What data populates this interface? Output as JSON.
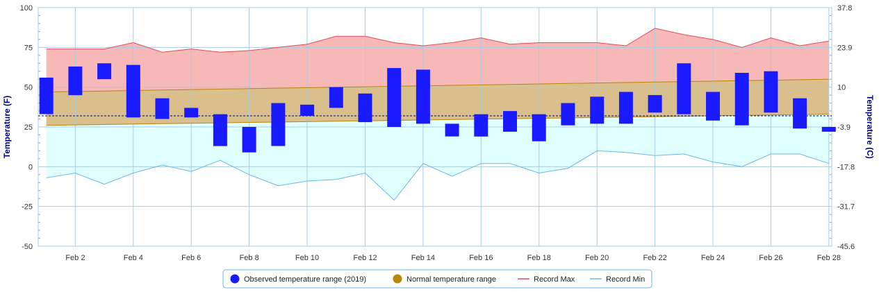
{
  "chart_data": {
    "type": "bar",
    "title": "",
    "y_left_label": "Temperature (F)",
    "y_right_label": "Temperature (C)",
    "ylim": [
      -50,
      100
    ],
    "y_left_ticks": [
      -50,
      -25,
      0,
      25,
      50,
      75,
      100
    ],
    "y_right_ticks": [
      "-45.6",
      "-31.7",
      "-17.8",
      "-3.9",
      "10",
      "23.9",
      "37.8"
    ],
    "x_ticks": [
      {
        "day": 2,
        "label": "Feb 2"
      },
      {
        "day": 4,
        "label": "Feb 4"
      },
      {
        "day": 6,
        "label": "Feb 6"
      },
      {
        "day": 8,
        "label": "Feb 8"
      },
      {
        "day": 10,
        "label": "Feb 10"
      },
      {
        "day": 12,
        "label": "Feb 12"
      },
      {
        "day": 14,
        "label": "Feb 14"
      },
      {
        "day": 16,
        "label": "Feb 16"
      },
      {
        "day": 18,
        "label": "Feb 18"
      },
      {
        "day": 20,
        "label": "Feb 20"
      },
      {
        "day": 22,
        "label": "Feb 22"
      },
      {
        "day": 24,
        "label": "Feb 24"
      },
      {
        "day": 26,
        "label": "Feb 26"
      },
      {
        "day": 28,
        "label": "Feb 28"
      }
    ],
    "freezing_line_f": 32,
    "days": [
      1,
      2,
      3,
      4,
      5,
      6,
      7,
      8,
      9,
      10,
      11,
      12,
      13,
      14,
      15,
      16,
      17,
      18,
      19,
      20,
      21,
      22,
      23,
      24,
      25,
      26,
      27,
      28
    ],
    "observed_low": [
      33,
      45,
      55,
      31,
      30,
      31,
      13,
      9,
      13,
      32,
      37,
      28,
      25,
      27,
      19,
      19,
      22,
      16,
      26,
      27,
      27,
      34,
      33,
      29,
      26,
      34,
      24,
      22
    ],
    "observed_high": [
      56,
      63,
      65,
      64,
      43,
      37,
      33,
      25,
      40,
      39,
      50,
      46,
      62,
      61,
      27,
      33,
      35,
      33,
      40,
      44,
      47,
      45,
      65,
      47,
      59,
      60,
      43,
      25
    ],
    "normal_low_start": 26,
    "normal_low_end": 33,
    "normal_high_start": 47,
    "normal_high_end": 55,
    "record_max": [
      74,
      74,
      74,
      78,
      72,
      74,
      72,
      73,
      75,
      77,
      82,
      82,
      78,
      76,
      78,
      81,
      77,
      78,
      78,
      78,
      76,
      87,
      83,
      80,
      75,
      81,
      76,
      79
    ],
    "record_min": [
      -7,
      -4,
      -11,
      -4,
      1,
      -3,
      4,
      -5,
      -12,
      -9,
      -8,
      -4,
      -21,
      2,
      -6,
      2,
      2,
      -4,
      -1,
      10,
      9,
      7,
      8,
      3,
      0,
      8,
      8,
      2
    ],
    "colors": {
      "observed": "#1a1aff",
      "normal_fill": "#d8bf8c",
      "normal_line": "#b8860b",
      "record_max_line": "#e8495a",
      "record_max_fill": "#f7b8b8",
      "record_min_line": "#6ab7e6",
      "record_min_fill": "#e0ffff",
      "grid": "#a8cce0",
      "freezing": "#000080"
    }
  },
  "legend": {
    "observed": "Observed temperature range (2019)",
    "normal": "Normal temperature range",
    "record_max": "Record Max",
    "record_min": "Record Min",
    "observed_dot_color": "#1a1aff",
    "normal_dot_color": "#b8860b"
  }
}
